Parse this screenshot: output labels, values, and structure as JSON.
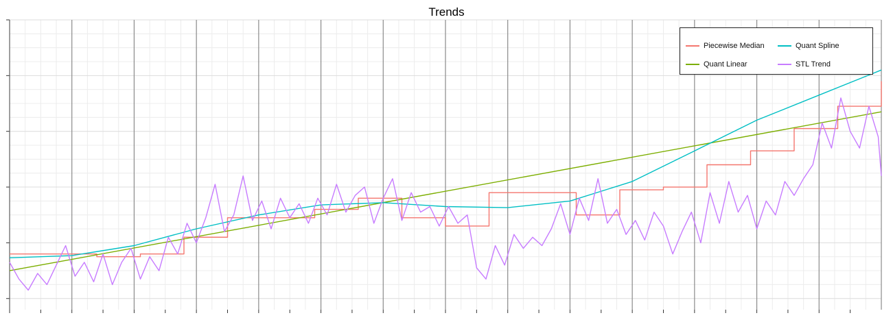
{
  "chart_data": {
    "type": "line",
    "title": "Trends",
    "xlabel": "",
    "ylabel": "",
    "grid": true,
    "legend_position": "top-right",
    "xlim": [
      0,
      14
    ],
    "ylim": [
      0,
      5.2
    ],
    "y_major_ticks": [
      0.2,
      1.2,
      2.2,
      3.2,
      4.2,
      5.2
    ],
    "x_major_ticks": [
      0,
      1,
      2,
      3,
      4,
      5,
      6,
      7,
      8,
      9,
      10,
      11,
      12,
      13,
      14
    ],
    "series": [
      {
        "name": "Piecewise Median",
        "color": "#f4766e",
        "style": "step",
        "x": [
          0,
          0.7,
          1.4,
          2.1,
          2.8,
          3.5,
          4.9,
          5.6,
          6.3,
          7.0,
          7.7,
          8.4,
          9.1,
          9.8,
          10.5,
          11.2,
          11.9,
          12.6,
          13.3,
          14.0
        ],
        "y": [
          1.0,
          1.0,
          0.95,
          1.0,
          1.3,
          1.65,
          1.8,
          2.0,
          1.65,
          1.5,
          2.1,
          2.1,
          1.7,
          2.15,
          2.2,
          2.6,
          2.85,
          3.25,
          3.65,
          4.1
        ]
      },
      {
        "name": "Quant Linear",
        "color": "#7cae00",
        "style": "line",
        "x": [
          0,
          14
        ],
        "y": [
          0.7,
          3.55
        ]
      },
      {
        "name": "Quant Spline",
        "color": "#00bfc4",
        "style": "line",
        "x": [
          0,
          1,
          2,
          3,
          4,
          5,
          6,
          7,
          8,
          9,
          10,
          11,
          12,
          13,
          14
        ],
        "y": [
          0.93,
          0.97,
          1.15,
          1.45,
          1.7,
          1.88,
          1.92,
          1.85,
          1.83,
          1.95,
          2.3,
          2.85,
          3.4,
          3.85,
          4.3
        ]
      },
      {
        "name": "STL Trend",
        "color": "#c77cff",
        "style": "line",
        "x": [
          0.0,
          0.15,
          0.3,
          0.45,
          0.6,
          0.75,
          0.9,
          1.05,
          1.2,
          1.35,
          1.5,
          1.65,
          1.8,
          1.95,
          2.1,
          2.25,
          2.4,
          2.55,
          2.7,
          2.85,
          3.0,
          3.15,
          3.3,
          3.45,
          3.6,
          3.75,
          3.9,
          4.05,
          4.2,
          4.35,
          4.5,
          4.65,
          4.8,
          4.95,
          5.1,
          5.25,
          5.4,
          5.55,
          5.7,
          5.85,
          6.0,
          6.15,
          6.3,
          6.45,
          6.6,
          6.75,
          6.9,
          7.05,
          7.2,
          7.35,
          7.5,
          7.65,
          7.8,
          7.95,
          8.1,
          8.25,
          8.4,
          8.55,
          8.7,
          8.85,
          9.0,
          9.15,
          9.3,
          9.45,
          9.6,
          9.75,
          9.9,
          10.05,
          10.2,
          10.35,
          10.5,
          10.65,
          10.8,
          10.95,
          11.1,
          11.25,
          11.4,
          11.55,
          11.7,
          11.85,
          12.0,
          12.15,
          12.3,
          12.45,
          12.6,
          12.75,
          12.9,
          13.05,
          13.2,
          13.35,
          13.5,
          13.65,
          13.8,
          13.95,
          14.0
        ],
        "y": [
          0.85,
          0.55,
          0.35,
          0.65,
          0.45,
          0.8,
          1.15,
          0.6,
          0.85,
          0.5,
          1.0,
          0.45,
          0.85,
          1.1,
          0.55,
          0.95,
          0.7,
          1.3,
          1.0,
          1.55,
          1.2,
          1.65,
          2.25,
          1.4,
          1.7,
          2.4,
          1.6,
          1.95,
          1.45,
          2.0,
          1.65,
          1.9,
          1.55,
          2.0,
          1.7,
          2.25,
          1.75,
          2.05,
          2.2,
          1.55,
          2.0,
          2.35,
          1.6,
          2.1,
          1.75,
          1.85,
          1.5,
          1.85,
          1.55,
          1.7,
          0.75,
          0.55,
          1.15,
          0.8,
          1.35,
          1.1,
          1.3,
          1.15,
          1.45,
          1.9,
          1.35,
          2.0,
          1.6,
          2.35,
          1.55,
          1.8,
          1.35,
          1.6,
          1.25,
          1.75,
          1.5,
          1.0,
          1.4,
          1.75,
          1.2,
          2.1,
          1.55,
          2.3,
          1.75,
          2.05,
          1.45,
          1.95,
          1.7,
          2.3,
          2.05,
          2.35,
          2.6,
          3.35,
          2.9,
          3.8,
          3.2,
          2.9,
          3.65,
          3.1,
          2.4
        ]
      }
    ]
  }
}
